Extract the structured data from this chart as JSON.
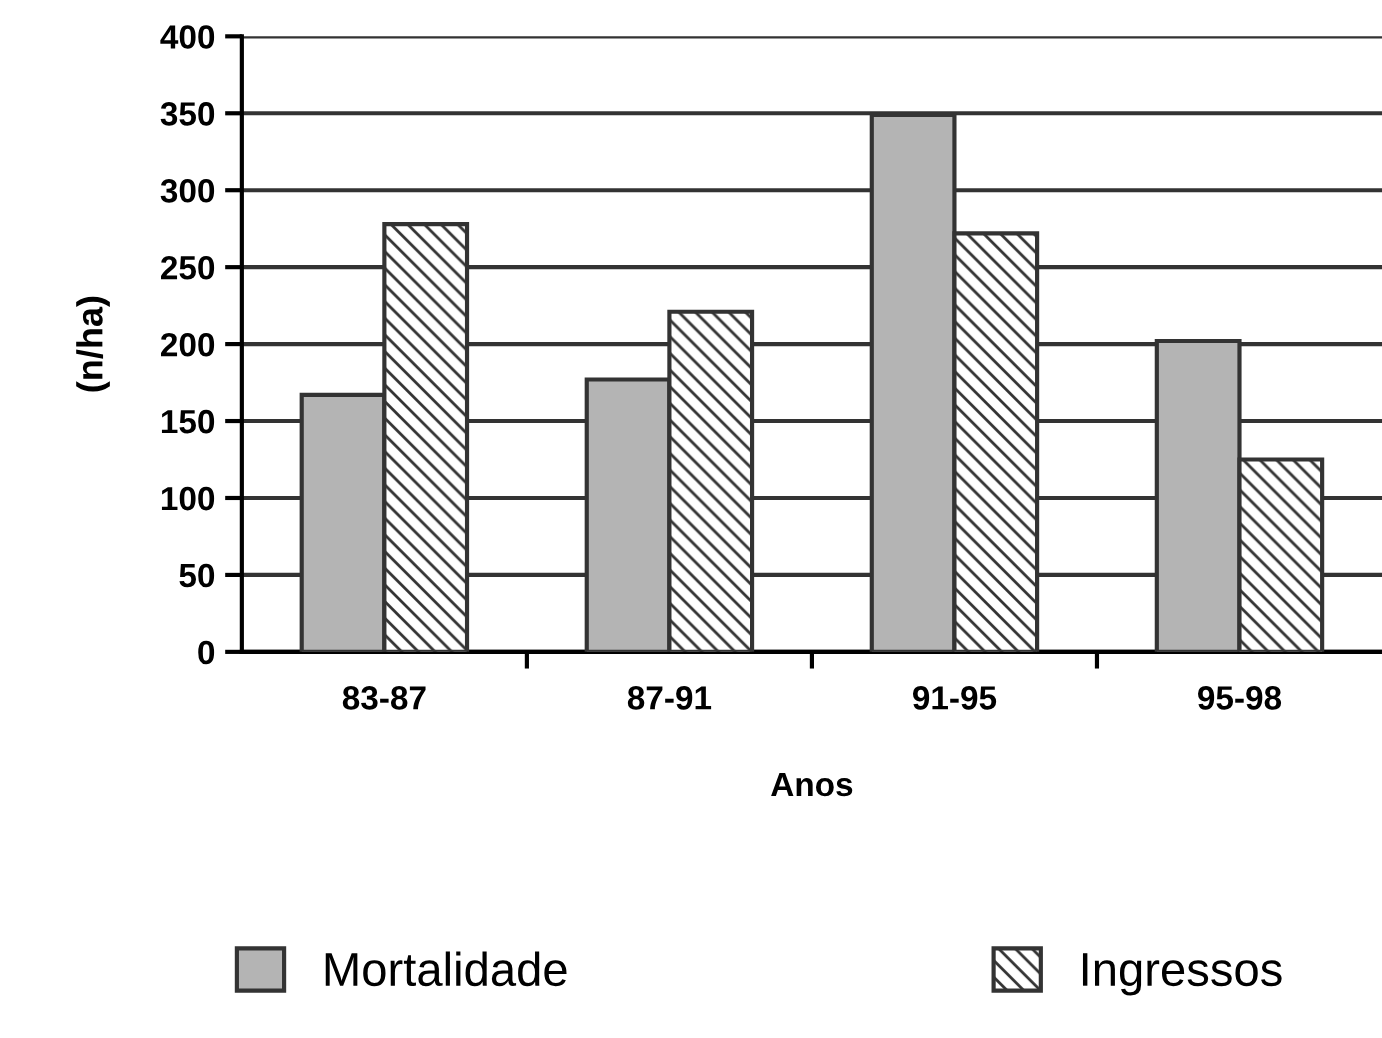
{
  "chart_data": {
    "type": "bar",
    "xlabel": "Anos",
    "ylabel": "(n/ha)",
    "categories": [
      "83-87",
      "87-91",
      "91-95",
      "95-98"
    ],
    "series": [
      {
        "name": "Mortalidade",
        "color": "#b4b4b4",
        "values": [
          167,
          177,
          349,
          202
        ]
      },
      {
        "name": "Ingressos",
        "color": "#333333",
        "values": [
          278,
          221,
          272,
          125
        ]
      }
    ],
    "ylim": [
      0,
      400
    ],
    "yticks": [
      0,
      50,
      100,
      150,
      200,
      250,
      300,
      350,
      400
    ],
    "grid": "y",
    "legend": "bottom"
  }
}
